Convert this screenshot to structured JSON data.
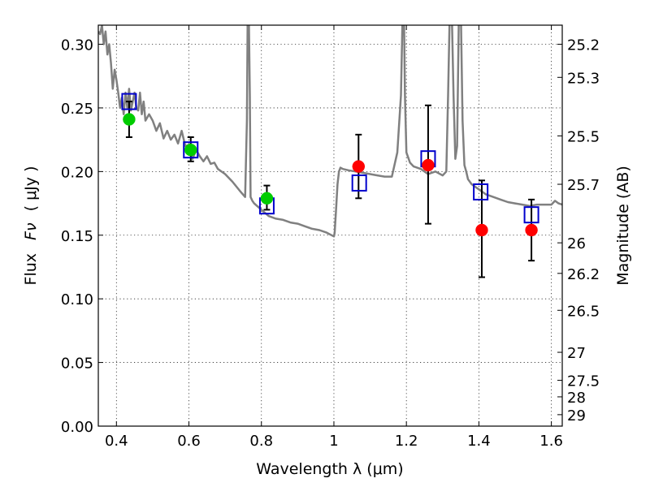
{
  "chart_data": {
    "type": "scatter",
    "xlabel": "Wavelength  λ (μm)",
    "ylabel_left_prefix": "Flux",
    "ylabel_left_var": "Fν",
    "ylabel_left_unit": "( μJy )",
    "ylabel_right": "Magnitude (AB)",
    "xlim": [
      0.35,
      1.63
    ],
    "ylim": [
      0.0,
      0.315
    ],
    "x_ticks": [
      0.4,
      0.6,
      0.8,
      1.0,
      1.2,
      1.4,
      1.6
    ],
    "x_tick_labels": [
      "0.4",
      "0.6",
      "0.8",
      "1",
      "1.2",
      "1.4",
      "1.6"
    ],
    "y_ticks": [
      0.0,
      0.05,
      0.1,
      0.15,
      0.2,
      0.25,
      0.3
    ],
    "y_tick_labels": [
      "0.00",
      "0.05",
      "0.10",
      "0.15",
      "0.20",
      "0.25",
      "0.30"
    ],
    "right_ticks": [
      {
        "label": "25.2",
        "flux": 0.3
      },
      {
        "label": "25.3",
        "flux": 0.274
      },
      {
        "label": "25.5",
        "flux": 0.228
      },
      {
        "label": "25.7",
        "flux": 0.19
      },
      {
        "label": "26",
        "flux": 0.144
      },
      {
        "label": "26.2",
        "flux": 0.12
      },
      {
        "label": "26.5",
        "flux": 0.091
      },
      {
        "label": "27",
        "flux": 0.058
      },
      {
        "label": "27.5",
        "flux": 0.036
      },
      {
        "label": "28",
        "flux": 0.023
      },
      {
        "label": "29",
        "flux": 0.009
      }
    ],
    "grid": true,
    "series": [
      {
        "kind": "model_spectrum",
        "color": "#808080",
        "x": [
          0.35,
          0.355,
          0.36,
          0.365,
          0.37,
          0.375,
          0.38,
          0.385,
          0.39,
          0.395,
          0.4,
          0.405,
          0.41,
          0.415,
          0.42,
          0.425,
          0.43,
          0.435,
          0.44,
          0.445,
          0.45,
          0.455,
          0.46,
          0.465,
          0.47,
          0.475,
          0.48,
          0.49,
          0.5,
          0.51,
          0.52,
          0.53,
          0.54,
          0.55,
          0.56,
          0.57,
          0.58,
          0.59,
          0.6,
          0.61,
          0.62,
          0.63,
          0.64,
          0.65,
          0.66,
          0.67,
          0.68,
          0.7,
          0.72,
          0.74,
          0.755,
          0.76,
          0.762,
          0.765,
          0.768,
          0.77,
          0.775,
          0.78,
          0.8,
          0.82,
          0.84,
          0.86,
          0.88,
          0.9,
          0.92,
          0.94,
          0.96,
          0.98,
          1.0,
          1.002,
          1.006,
          1.01,
          1.014,
          1.018,
          1.025,
          1.04,
          1.06,
          1.08,
          1.1,
          1.12,
          1.14,
          1.16,
          1.175,
          1.185,
          1.19,
          1.193,
          1.196,
          1.2,
          1.21,
          1.22,
          1.24,
          1.26,
          1.28,
          1.3,
          1.31,
          1.315,
          1.32,
          1.325,
          1.33,
          1.335,
          1.34,
          1.345,
          1.35,
          1.355,
          1.36,
          1.365,
          1.37,
          1.38,
          1.4,
          1.42,
          1.44,
          1.46,
          1.48,
          1.5,
          1.52,
          1.54,
          1.56,
          1.58,
          1.6,
          1.61,
          1.62,
          1.63
        ],
        "y": [
          0.31,
          0.308,
          0.315,
          0.3,
          0.31,
          0.292,
          0.3,
          0.285,
          0.265,
          0.28,
          0.272,
          0.262,
          0.25,
          0.258,
          0.245,
          0.262,
          0.25,
          0.265,
          0.248,
          0.255,
          0.262,
          0.25,
          0.248,
          0.262,
          0.245,
          0.255,
          0.24,
          0.245,
          0.24,
          0.232,
          0.238,
          0.226,
          0.232,
          0.225,
          0.229,
          0.222,
          0.232,
          0.22,
          0.221,
          0.21,
          0.217,
          0.212,
          0.208,
          0.212,
          0.206,
          0.207,
          0.202,
          0.198,
          0.192,
          0.185,
          0.18,
          0.24,
          0.32,
          0.33,
          0.26,
          0.18,
          0.177,
          0.175,
          0.17,
          0.165,
          0.163,
          0.162,
          0.16,
          0.159,
          0.157,
          0.155,
          0.154,
          0.152,
          0.149,
          0.152,
          0.17,
          0.19,
          0.2,
          0.203,
          0.202,
          0.201,
          0.2,
          0.199,
          0.198,
          0.197,
          0.196,
          0.196,
          0.215,
          0.26,
          0.33,
          0.33,
          0.26,
          0.215,
          0.207,
          0.204,
          0.202,
          0.198,
          0.2,
          0.197,
          0.2,
          0.26,
          0.33,
          0.33,
          0.26,
          0.21,
          0.22,
          0.33,
          0.33,
          0.24,
          0.205,
          0.2,
          0.194,
          0.19,
          0.186,
          0.182,
          0.18,
          0.178,
          0.176,
          0.175,
          0.174,
          0.173,
          0.174,
          0.174,
          0.174,
          0.177,
          0.175,
          0.174
        ]
      },
      {
        "kind": "model_photometry",
        "marker": "open-square",
        "color": "#0000cc",
        "x": [
          0.435,
          0.605,
          0.815,
          1.07,
          1.26,
          1.405,
          1.545
        ],
        "y": [
          0.255,
          0.217,
          0.173,
          0.191,
          0.21,
          0.184,
          0.166
        ]
      },
      {
        "kind": "observed_optical",
        "marker": "filled-circle",
        "color": "#00cc00",
        "x": [
          0.435,
          0.605,
          0.815
        ],
        "y": [
          0.241,
          0.217,
          0.179
        ],
        "err_lo": [
          0.227,
          0.208,
          0.17
        ],
        "err_hi": [
          0.255,
          0.227,
          0.189
        ]
      },
      {
        "kind": "observed_nir",
        "marker": "filled-circle",
        "color": "#ff0000",
        "x": [
          1.068,
          1.26,
          1.408,
          1.545
        ],
        "y": [
          0.204,
          0.205,
          0.154,
          0.154
        ],
        "err_lo": [
          0.179,
          0.159,
          0.117,
          0.13
        ],
        "err_hi": [
          0.229,
          0.252,
          0.193,
          0.178
        ]
      }
    ]
  }
}
